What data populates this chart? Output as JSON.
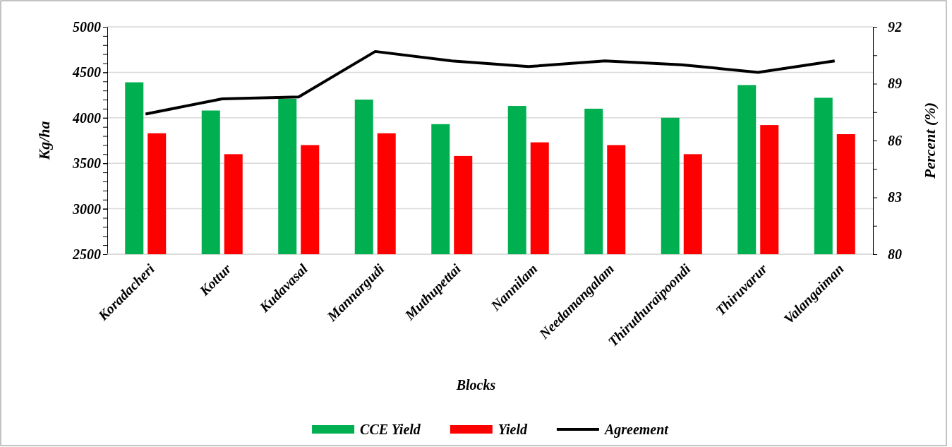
{
  "chart_data": {
    "type": "bar",
    "xlabel": "Blocks",
    "ylabel": "Kg/ha",
    "y2label": "Percent (%)",
    "categories": [
      "Koradacheri",
      "Kottur",
      "Kudavasal",
      "Mannargudi",
      "Muthupettai",
      "Nannilam",
      "Needamangalam",
      "Thiruthuraipoondi",
      "Thiruvarur",
      "Valangaiman"
    ],
    "series": [
      {
        "name": "CCE Yield",
        "color": "#00b050",
        "values": [
          4390,
          4080,
          4210,
          4200,
          3930,
          4130,
          4100,
          4000,
          4360,
          4220
        ]
      },
      {
        "name": "Yield",
        "color": "#ff0000",
        "values": [
          3830,
          3600,
          3700,
          3830,
          3580,
          3730,
          3700,
          3600,
          3920,
          3820
        ]
      },
      {
        "name": "Agreement",
        "type": "line",
        "axis": "y2",
        "color": "#000000",
        "values": [
          87.4,
          88.2,
          88.3,
          90.7,
          90.2,
          89.9,
          90.2,
          90.0,
          89.6,
          90.2
        ]
      }
    ],
    "ylim": [
      2500,
      5000
    ],
    "yticks": [
      2500,
      3000,
      3500,
      4000,
      4500,
      5000
    ],
    "y2lim": [
      80,
      92
    ],
    "y2ticks": [
      80,
      {
        "value": 81.5,
        "label": null
      },
      83,
      {
        "value": 84.5,
        "label": null
      },
      86,
      {
        "value": 87.5,
        "label": null
      },
      89,
      {
        "value": 90.5,
        "label": null
      },
      92
    ],
    "grid": "y",
    "legend": "bottom",
    "marker": "none",
    "line_style": "solid"
  }
}
